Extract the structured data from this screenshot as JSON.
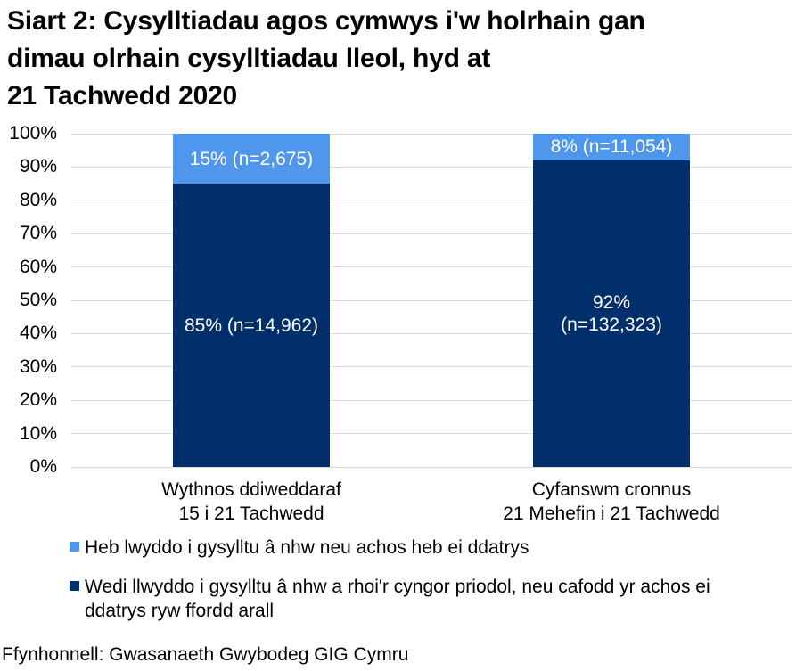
{
  "title": "Siart 2: Cysylltiadau agos cymwys i'w holrhain gan\ndimau olrhain cysylltiadau lleol, hyd at\n21 Tachwedd 2020",
  "footer": "Ffynhonnell: Gwasanaeth Gwybodeg GIG Cymru",
  "colors": {
    "light_blue": "#4F96ED",
    "navy": "#002F6C",
    "gridline": "#D9D9D9",
    "text": "#000000",
    "bar_label_text": "#FFFFFF"
  },
  "legend": {
    "items": [
      {
        "label": "Heb lwyddo i gysylltu â nhw neu achos heb ei ddatrys",
        "color": "#4F96ED"
      },
      {
        "label": "Wedi llwyddo i gysylltu â nhw a rhoi'r cyngor priodol, neu cafodd yr achos ei\nddatrys ryw ffordd arall",
        "color": "#002F6C"
      }
    ]
  },
  "chart_data": {
    "type": "bar",
    "stacked": true,
    "percent_stacked": true,
    "title": "Siart 2: Cysylltiadau agos cymwys i'w holrhain gan dimau olrhain cysylltiadau lleol, hyd at 21 Tachwedd 2020",
    "xlabel": "",
    "ylabel": "",
    "ylim": [
      0,
      100
    ],
    "grid": "horizontal",
    "legend_position": "bottom-left",
    "y_tick_labels": [
      "0%",
      "10%",
      "20%",
      "30%",
      "40%",
      "50%",
      "60%",
      "70%",
      "80%",
      "90%",
      "100%"
    ],
    "categories": [
      "Wythnos ddiweddaraf\n15 i 21 Tachwedd",
      "Cyfanswm cronnus\n21 Mehefin i 21 Tachwedd"
    ],
    "series": [
      {
        "name": "Heb lwyddo i gysylltu â nhw neu achos heb ei ddatrys",
        "values": [
          15,
          8
        ],
        "counts": [
          2675,
          11054
        ],
        "color": "#4F96ED",
        "position": "top"
      },
      {
        "name": "Wedi llwyddo i gysylltu â nhw a rhoi'r cyngor priodol, neu cafodd yr achos ei ddatrys ryw ffordd arall",
        "values": [
          85,
          92
        ],
        "counts": [
          14962,
          132323
        ],
        "color": "#002F6C",
        "position": "bottom"
      }
    ],
    "segment_labels": [
      [
        "15% (n=2,675)",
        "85% (n=14,962)"
      ],
      [
        "8% (n=11,054)",
        "92%\n(n=132,323)"
      ]
    ]
  }
}
